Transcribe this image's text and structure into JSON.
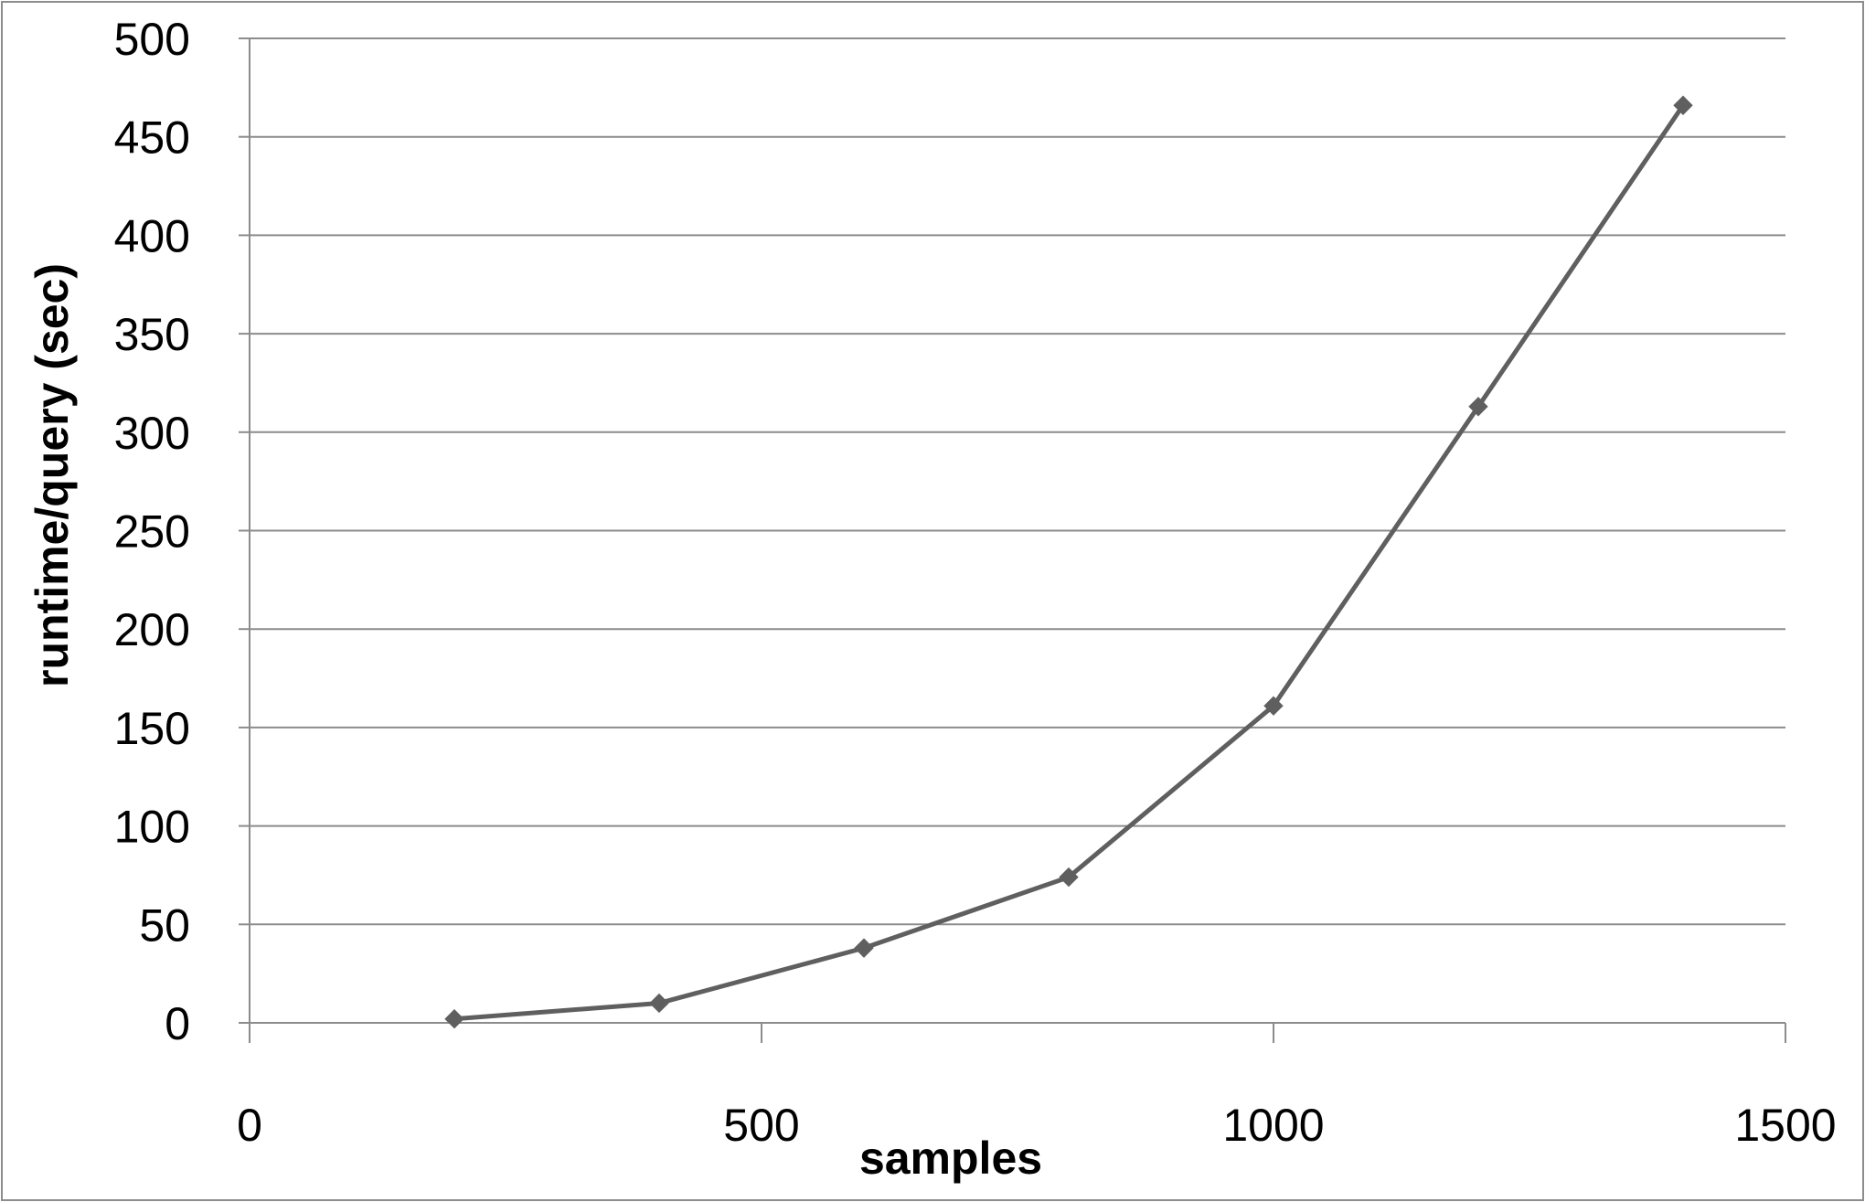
{
  "chart_data": {
    "type": "scatter",
    "title": "",
    "xlabel": "samples",
    "ylabel": "runtime/query (sec)",
    "xlim": [
      0,
      1500
    ],
    "ylim": [
      0,
      500
    ],
    "x_ticks": [
      0,
      500,
      1000,
      1500
    ],
    "y_ticks": [
      0,
      50,
      100,
      150,
      200,
      250,
      300,
      350,
      400,
      450,
      500
    ],
    "grid": "horizontal",
    "legend": "none",
    "marker": "diamond",
    "lines_connect_points": true,
    "series": [
      {
        "color": "#5f5f5f",
        "x": [
          200,
          400,
          600,
          800,
          1000,
          1200,
          1400
        ],
        "y": [
          2,
          10,
          38,
          74,
          161,
          313,
          466
        ]
      }
    ]
  }
}
